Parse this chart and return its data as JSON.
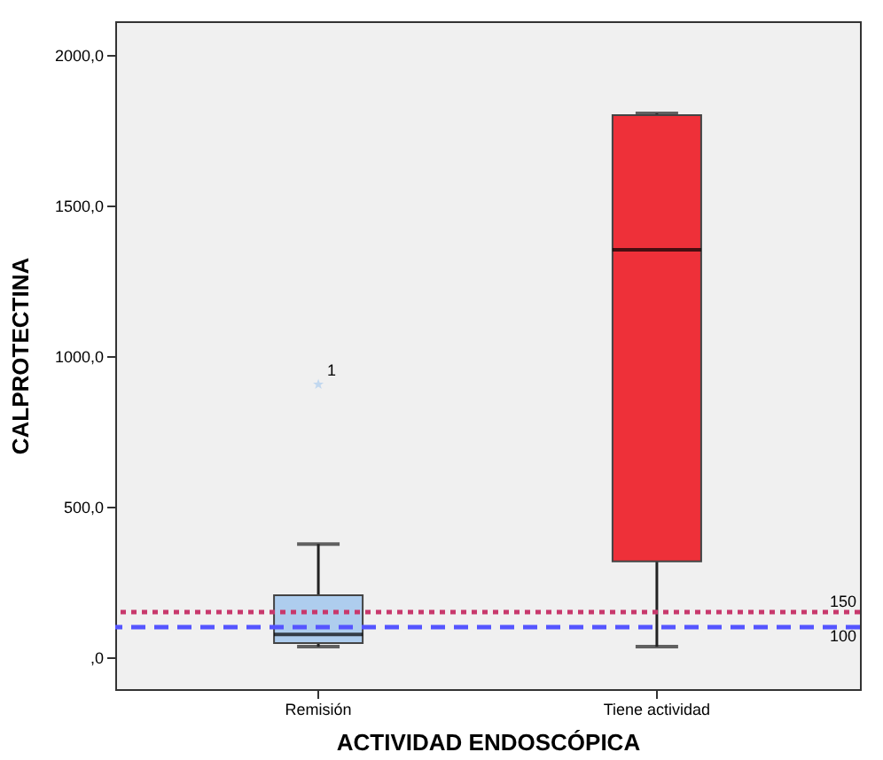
{
  "chart_data": {
    "type": "box",
    "xlabel": "ACTIVIDAD ENDOSCÓPICA",
    "ylabel": "CALPROTECTINA",
    "categories": [
      "Remisión",
      "Tiene actividad"
    ],
    "colors": [
      "#aecdee",
      "#ee3039"
    ],
    "boxes": [
      {
        "low": 35,
        "q1": 47,
        "median": 76,
        "q3": 206,
        "high": 376,
        "outliers": [
          906
        ]
      },
      {
        "low": 35,
        "q1": 318,
        "median": 1353,
        "q3": 1800,
        "high": 1806
      }
    ],
    "marker": "star",
    "ylim": [
      -106,
      2112
    ],
    "yticks": [
      {
        "value": 0,
        "label": ",0"
      },
      {
        "value": 500,
        "label": "500,0"
      },
      {
        "value": 1000,
        "label": "1000,0"
      },
      {
        "value": 1500,
        "label": "1500,0"
      },
      {
        "value": 2000,
        "label": "2000,0"
      }
    ],
    "ref_lines": [
      {
        "axis": "y",
        "value": 150,
        "label": "150",
        "color": "#c8386c",
        "line_style": "dotted"
      },
      {
        "axis": "y",
        "value": 100,
        "label": "100",
        "color": "#5555ff",
        "line_style": "dashed"
      }
    ],
    "annotations": [
      "1"
    ]
  }
}
